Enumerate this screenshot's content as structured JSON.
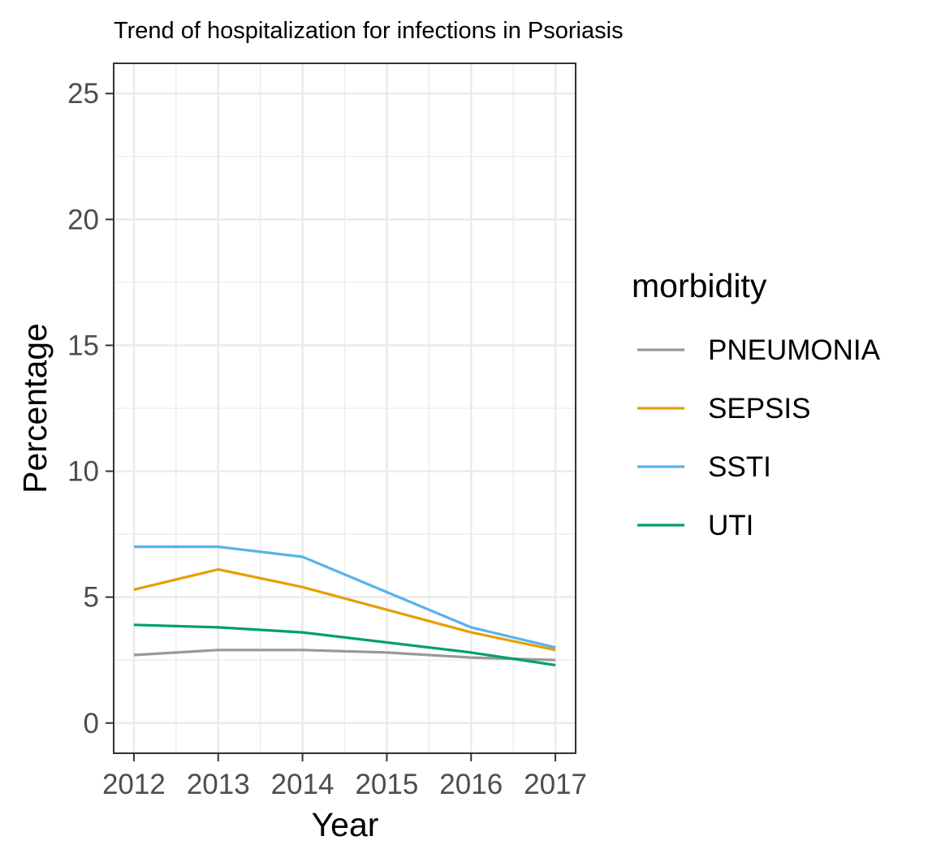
{
  "chart_data": {
    "type": "line",
    "title": "Trend of hospitalization for infections in Psoriasis",
    "xlabel": "Year",
    "ylabel": "Percentage",
    "x": [
      2012,
      2013,
      2014,
      2015,
      2016,
      2017
    ],
    "xlim": [
      2011.76,
      2017.24
    ],
    "ylim": [
      -1.2,
      26.2
    ],
    "yticks": [
      0,
      5,
      10,
      15,
      20,
      25
    ],
    "grid": true,
    "legend": {
      "title": "morbidity",
      "position": "right"
    },
    "series": [
      {
        "name": "PNEUMONIA",
        "color": "#999999",
        "values": [
          2.7,
          2.9,
          2.9,
          2.8,
          2.6,
          2.5
        ]
      },
      {
        "name": "SEPSIS",
        "color": "#E69F00",
        "values": [
          5.3,
          6.1,
          5.4,
          4.5,
          3.6,
          2.9
        ]
      },
      {
        "name": "SSTI",
        "color": "#56B4E9",
        "values": [
          7.0,
          7.0,
          6.6,
          5.2,
          3.8,
          3.0
        ]
      },
      {
        "name": "UTI",
        "color": "#009E73",
        "values": [
          3.9,
          3.8,
          3.6,
          3.2,
          2.8,
          2.3
        ]
      }
    ]
  }
}
